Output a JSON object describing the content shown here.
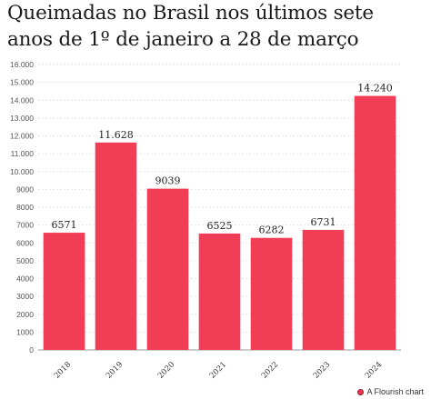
{
  "chart_data": {
    "type": "bar",
    "title_lines": [
      "Queimadas no Brasil nos últimos sete",
      "anos de 1º de janeiro a 28 de março"
    ],
    "categories": [
      "2018",
      "2019",
      "2020",
      "2021",
      "2022",
      "2023",
      "2024"
    ],
    "values": [
      6571,
      11628,
      9039,
      6525,
      6282,
      6731,
      14240
    ],
    "value_labels": [
      "6571",
      "11.628",
      "9039",
      "6525",
      "6282",
      "6731",
      "14.240"
    ],
    "ylim": [
      0,
      16000
    ],
    "yticks": [
      0,
      1000,
      2000,
      3000,
      4000,
      5000,
      6000,
      7000,
      8000,
      9000,
      10000,
      11000,
      12000,
      13000,
      14000,
      15000,
      16000
    ],
    "ytick_labels": [
      "0",
      "1000",
      "2000",
      "3000",
      "4000",
      "5000",
      "6000",
      "7000",
      "8000",
      "9000",
      "10.000",
      "11.000",
      "12.000",
      "13.000",
      "14.000",
      "15.000",
      "16.000"
    ],
    "bar_color": "#f23d57",
    "grid": true
  },
  "footer": {
    "credit": "A Flourish chart"
  }
}
